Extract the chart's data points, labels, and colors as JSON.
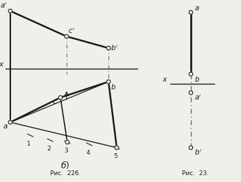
{
  "bg_color": "#f0f0eb",
  "line_color": "#1a1a1a",
  "dash_color": "#666666",
  "fig22b": {
    "fig_label": "Рис.  226.",
    "caption": "б)"
  },
  "fig23": {
    "fig_label": "Рис.  23."
  }
}
